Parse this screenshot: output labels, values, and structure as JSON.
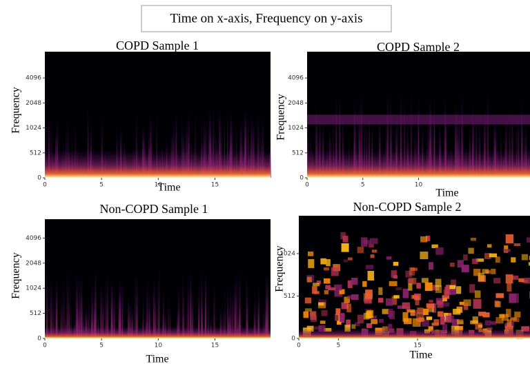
{
  "header": {
    "title": "Time on x-axis, Frequency on y-axis"
  },
  "chart_data": [
    {
      "type": "spectrogram",
      "title": "COPD Sample 1",
      "x_label": "Time",
      "y_label": "Frequency",
      "xlim": [
        0,
        19.9
      ],
      "xticks": [
        0,
        5,
        10,
        15
      ],
      "ylim": [
        0,
        8500
      ],
      "yticks": [
        0,
        512,
        1024,
        2048,
        4096
      ],
      "yscale": "symlog"
    },
    {
      "type": "spectrogram",
      "title": "COPD Sample 2",
      "x_label": "Time",
      "y_label": "Frequency",
      "xlim": [
        0,
        20
      ],
      "xticks": [
        0,
        5,
        10
      ],
      "ylim": [
        0,
        8500
      ],
      "yticks": [
        0,
        512,
        1024,
        2048,
        4096
      ],
      "yscale": "symlog"
    },
    {
      "type": "spectrogram",
      "title": "Non-COPD Sample 1",
      "x_label": "Time",
      "y_label": "Frequency",
      "xlim": [
        0,
        19.9
      ],
      "xticks": [
        0,
        5,
        10,
        15
      ],
      "ylim": [
        0,
        6900
      ],
      "yticks": [
        0,
        512,
        1024,
        2048,
        4096
      ],
      "yscale": "symlog"
    },
    {
      "type": "spectrogram",
      "title": "Non-COPD Sample 2",
      "x_label": "Time",
      "y_label": "Frequency",
      "xlim": [
        0,
        29.2
      ],
      "xticks": [
        0,
        5,
        15
      ],
      "ylim": [
        0,
        1900
      ],
      "yticks": [
        0,
        512,
        1024
      ],
      "yscale": "symlog"
    }
  ]
}
